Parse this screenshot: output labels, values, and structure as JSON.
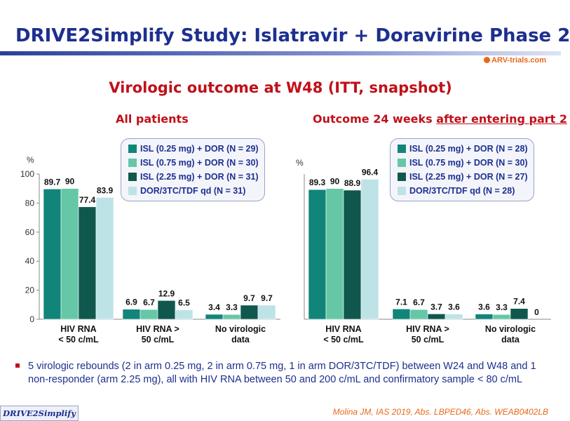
{
  "header": {
    "title": "DRIVE2Simplify Study: Islatravir + Doravirine Phase 2",
    "logo": "ARV-trials.com",
    "subtitle": "Virologic outcome at W48 (ITT, snapshot)"
  },
  "colors": {
    "s1": "#11857a",
    "s2": "#66c7a7",
    "s3": "#10584e",
    "s4": "#bde3e7",
    "title": "#1d2f8f",
    "accent": "#c0101a"
  },
  "chart_data": [
    {
      "type": "bar",
      "title": "All patients",
      "ylabel": "%",
      "ylim": [
        0,
        100
      ],
      "yticks": [
        "100",
        "80",
        "60",
        "40",
        "20",
        "0"
      ],
      "categories": [
        "HIV RNA < 50 c/mL",
        "HIV RNA > 50 c/mL",
        "No virologic data"
      ],
      "category_lines": [
        [
          "HIV RNA",
          "< 50 c/mL"
        ],
        [
          "HIV RNA >",
          "50 c/mL"
        ],
        [
          "No virologic",
          "data"
        ]
      ],
      "series": [
        {
          "name": "ISL (0.25 mg) + DOR (N = 29)",
          "values": [
            89.7,
            6.9,
            3.4
          ],
          "labels": [
            "89.7",
            "6.9",
            "3.4"
          ]
        },
        {
          "name": "ISL (0.75 mg) + DOR (N = 30)",
          "values": [
            90,
            6.7,
            3.3
          ],
          "labels": [
            "90",
            "6.7",
            "3.3"
          ]
        },
        {
          "name": "ISL (2.25 mg) + DOR (N = 31)",
          "values": [
            77.4,
            12.9,
            9.7
          ],
          "labels": [
            "77.4",
            "12.9",
            "9.7"
          ]
        },
        {
          "name": "DOR/3TC/TDF qd (N = 31)",
          "values": [
            83.9,
            6.5,
            9.7
          ],
          "labels": [
            "83.9",
            "6.5",
            "9.7"
          ]
        }
      ]
    },
    {
      "type": "bar",
      "title_parts": [
        "Outcome 24 weeks ",
        "after entering part 2"
      ],
      "ylabel": "%",
      "ylim": [
        0,
        100
      ],
      "categories": [
        "HIV RNA < 50 c/mL",
        "HIV RNA > 50 c/mL",
        "No virologic data"
      ],
      "category_lines": [
        [
          "HIV RNA",
          "< 50 c/mL"
        ],
        [
          "HIV RNA >",
          "50 c/mL"
        ],
        [
          "No virologic",
          "data"
        ]
      ],
      "series": [
        {
          "name": "ISL (0.25 mg) + DOR (N = 28)",
          "values": [
            89.3,
            7.1,
            3.6
          ],
          "labels": [
            "89.3",
            "7.1",
            "3.6"
          ]
        },
        {
          "name": "ISL (0.75 mg) + DOR  (N = 30)",
          "values": [
            90,
            6.7,
            3.3
          ],
          "labels": [
            "90",
            "6.7",
            "3.3"
          ]
        },
        {
          "name": "ISL (2.25 mg) + DOR (N = 27)",
          "values": [
            88.9,
            3.7,
            7.4
          ],
          "labels": [
            "88.9",
            "3.7",
            "7.4"
          ]
        },
        {
          "name": "DOR/3TC/TDF qd (N = 28)",
          "values": [
            96.4,
            3.6,
            0
          ],
          "labels": [
            "96.4",
            "3.6",
            "0"
          ]
        }
      ]
    }
  ],
  "bullet": "5 virologic rebounds (2 in arm 0.25 mg, 2 in arm 0.75 mg, 1 in arm DOR/3TC/TDF) between W24 and W48 and 1 non-responder (arm 2.25 mg), all with HIV RNA between 50 and 200 c/mL and confirmatory sample < 80 c/mL",
  "footer": {
    "tag": "DRIVE2Simplify",
    "reference": "Molina JM, IAS 2019, Abs. LBPED46, Abs. WEAB0402LB"
  }
}
